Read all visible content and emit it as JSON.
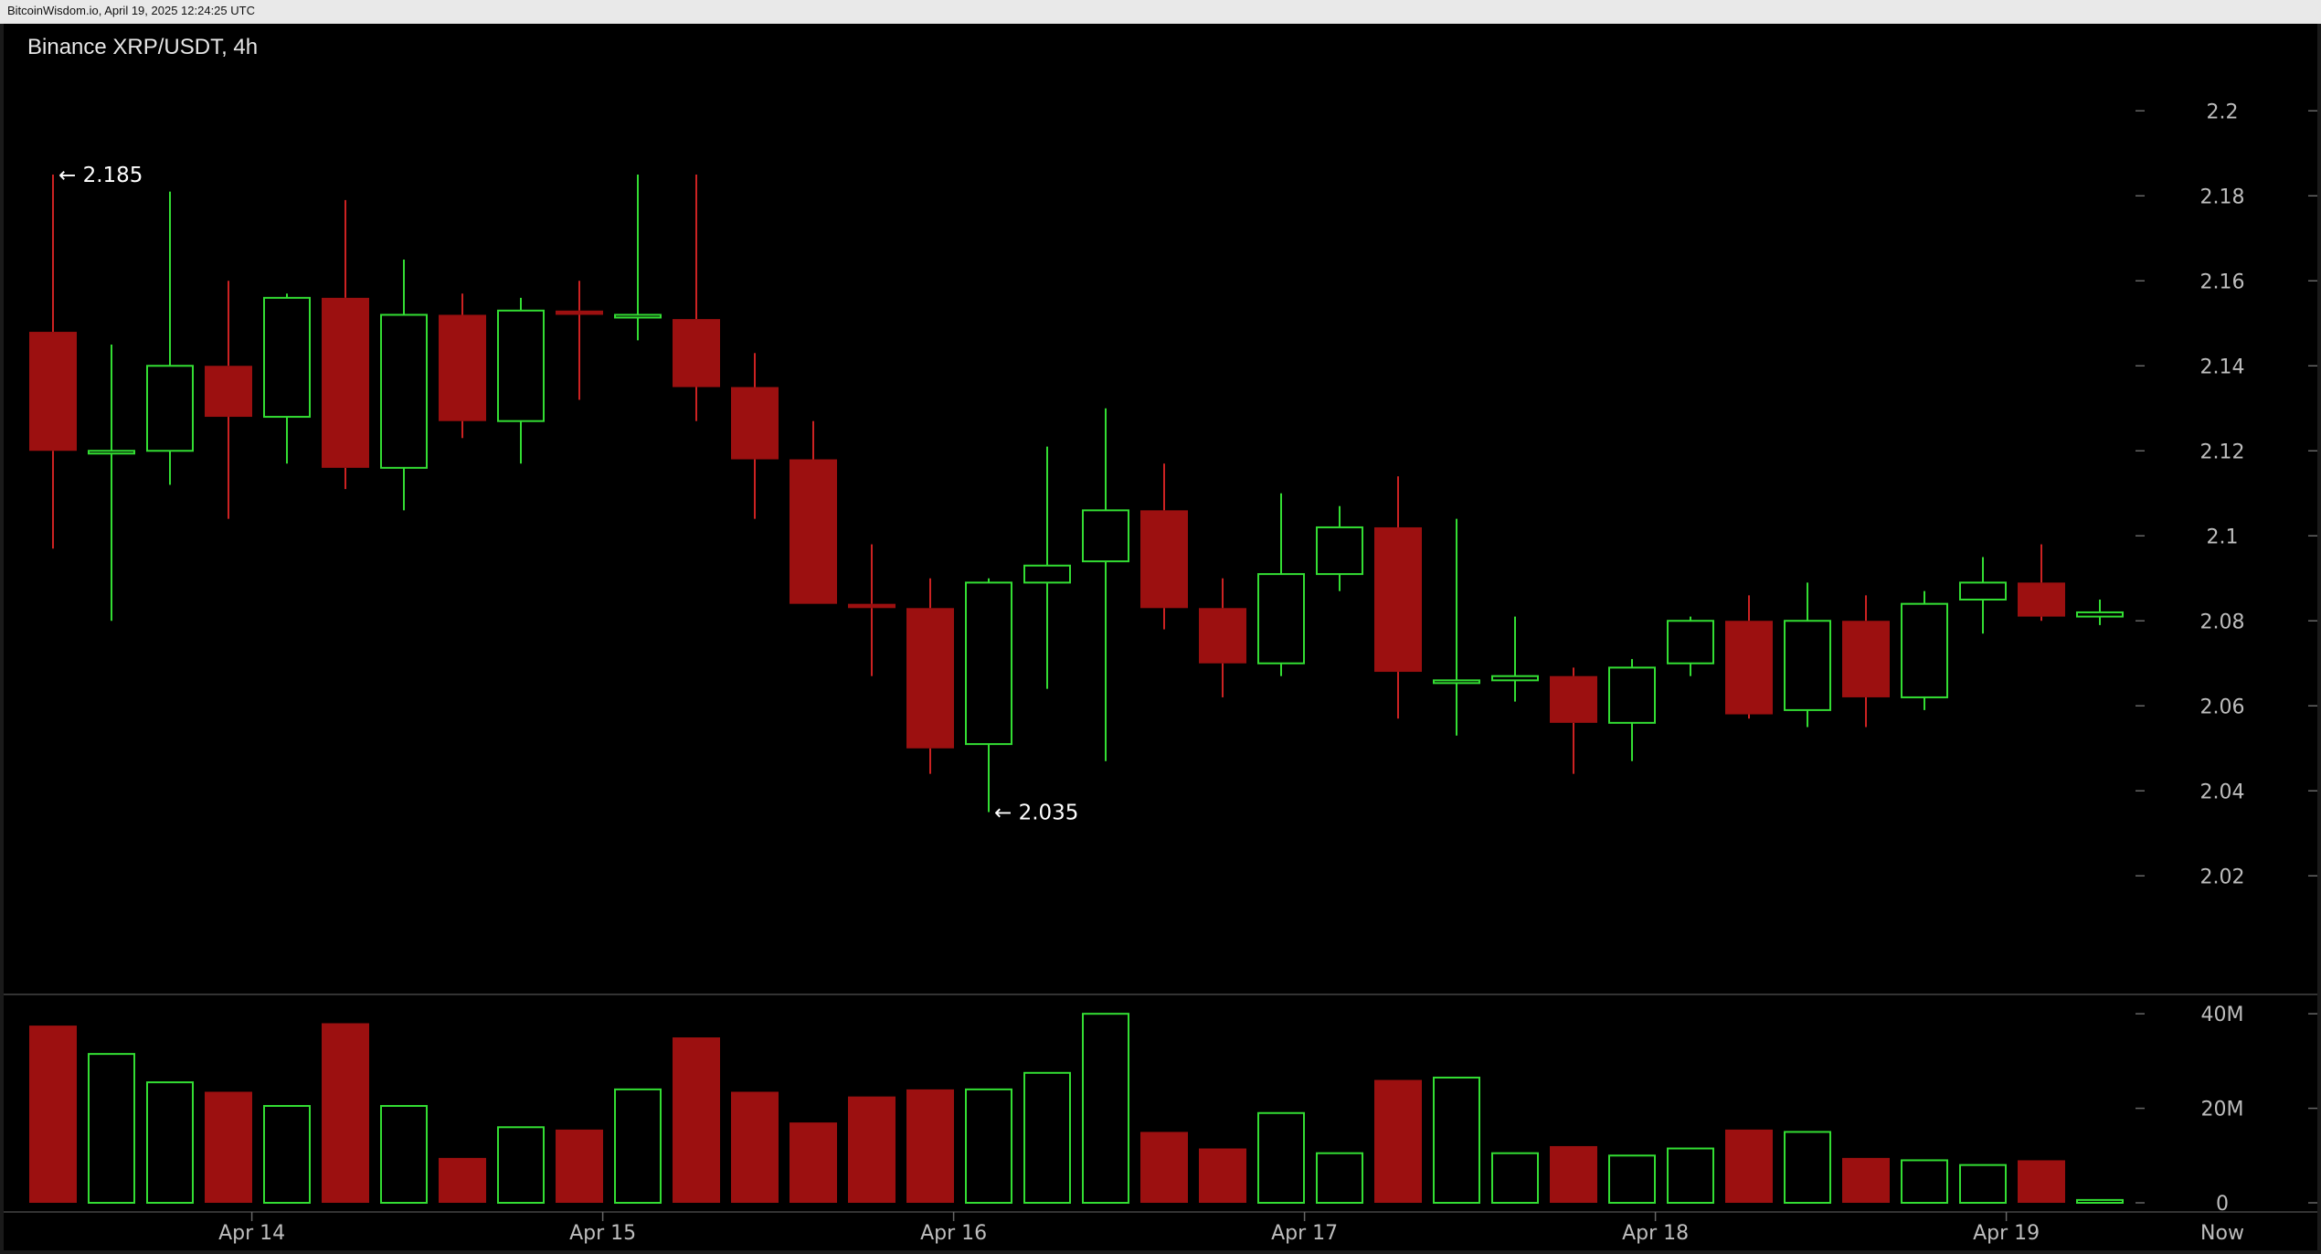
{
  "header": {
    "source_text": "BitcoinWisdom.io, April 19, 2025 12:24:25 UTC"
  },
  "chart_data": {
    "type": "candlestick",
    "title": "Binance XRP/USDT, 4h",
    "colors": {
      "up": "#33dd33",
      "down": "#9c1010",
      "down_wick": "#cc2222",
      "background": "#000000"
    },
    "price_axis": {
      "ylim": [
        2.005,
        2.205
      ],
      "ticks": [
        "2.2",
        "2.18",
        "2.16",
        "2.14",
        "2.12",
        "2.1",
        "2.08",
        "2.06",
        "2.04",
        "2.02"
      ]
    },
    "volume_axis": {
      "ylim": [
        0,
        41
      ],
      "ticks": [
        "40M",
        "20M",
        "0"
      ],
      "tick_values": [
        40,
        20,
        0
      ]
    },
    "x_axis": {
      "labels": [
        "Apr 14",
        "Apr 15",
        "Apr 16",
        "Apr 17",
        "Apr 18",
        "Apr 19",
        "Now"
      ],
      "label_positions": [
        3.4,
        9.4,
        15.4,
        21.4,
        27.4,
        33.4,
        37.6
      ]
    },
    "candles": [
      {
        "o": 2.148,
        "h": 2.185,
        "l": 2.097,
        "c": 2.12,
        "v": 37.5
      },
      {
        "o": 2.12,
        "h": 2.145,
        "l": 2.08,
        "c": 2.12,
        "v": 31.5
      },
      {
        "o": 2.12,
        "h": 2.181,
        "l": 2.112,
        "c": 2.14,
        "v": 25.5
      },
      {
        "o": 2.14,
        "h": 2.16,
        "l": 2.104,
        "c": 2.128,
        "v": 23.5
      },
      {
        "o": 2.128,
        "h": 2.157,
        "l": 2.117,
        "c": 2.156,
        "v": 20.5
      },
      {
        "o": 2.156,
        "h": 2.179,
        "l": 2.111,
        "c": 2.116,
        "v": 38
      },
      {
        "o": 2.116,
        "h": 2.165,
        "l": 2.106,
        "c": 2.152,
        "v": 20.5
      },
      {
        "o": 2.152,
        "h": 2.157,
        "l": 2.123,
        "c": 2.127,
        "v": 9.5
      },
      {
        "o": 2.127,
        "h": 2.156,
        "l": 2.117,
        "c": 2.153,
        "v": 16
      },
      {
        "o": 2.153,
        "h": 2.16,
        "l": 2.132,
        "c": 2.152,
        "v": 15.5
      },
      {
        "o": 2.152,
        "h": 2.185,
        "l": 2.146,
        "c": 2.152,
        "v": 24
      },
      {
        "o": 2.151,
        "h": 2.185,
        "l": 2.127,
        "c": 2.135,
        "v": 35
      },
      {
        "o": 2.135,
        "h": 2.143,
        "l": 2.104,
        "c": 2.118,
        "v": 23.5
      },
      {
        "o": 2.118,
        "h": 2.127,
        "l": 2.084,
        "c": 2.084,
        "v": 17
      },
      {
        "o": 2.084,
        "h": 2.098,
        "l": 2.067,
        "c": 2.083,
        "v": 22.5
      },
      {
        "o": 2.083,
        "h": 2.09,
        "l": 2.044,
        "c": 2.05,
        "v": 24
      },
      {
        "o": 2.051,
        "h": 2.09,
        "l": 2.035,
        "c": 2.089,
        "v": 24
      },
      {
        "o": 2.089,
        "h": 2.121,
        "l": 2.064,
        "c": 2.093,
        "v": 27.5
      },
      {
        "o": 2.094,
        "h": 2.13,
        "l": 2.047,
        "c": 2.106,
        "v": 40
      },
      {
        "o": 2.106,
        "h": 2.117,
        "l": 2.078,
        "c": 2.083,
        "v": 15
      },
      {
        "o": 2.083,
        "h": 2.09,
        "l": 2.062,
        "c": 2.07,
        "v": 11.5
      },
      {
        "o": 2.07,
        "h": 2.11,
        "l": 2.067,
        "c": 2.091,
        "v": 19
      },
      {
        "o": 2.091,
        "h": 2.107,
        "l": 2.087,
        "c": 2.102,
        "v": 10.5
      },
      {
        "o": 2.102,
        "h": 2.114,
        "l": 2.057,
        "c": 2.068,
        "v": 26
      },
      {
        "o": 2.066,
        "h": 2.104,
        "l": 2.053,
        "c": 2.066,
        "v": 26.5
      },
      {
        "o": 2.066,
        "h": 2.081,
        "l": 2.061,
        "c": 2.067,
        "v": 10.5
      },
      {
        "o": 2.067,
        "h": 2.069,
        "l": 2.044,
        "c": 2.056,
        "v": 12
      },
      {
        "o": 2.056,
        "h": 2.071,
        "l": 2.047,
        "c": 2.069,
        "v": 10
      },
      {
        "o": 2.07,
        "h": 2.081,
        "l": 2.067,
        "c": 2.08,
        "v": 11.5
      },
      {
        "o": 2.08,
        "h": 2.086,
        "l": 2.057,
        "c": 2.058,
        "v": 15.5
      },
      {
        "o": 2.059,
        "h": 2.089,
        "l": 2.055,
        "c": 2.08,
        "v": 15
      },
      {
        "o": 2.08,
        "h": 2.086,
        "l": 2.055,
        "c": 2.062,
        "v": 9.5
      },
      {
        "o": 2.062,
        "h": 2.087,
        "l": 2.059,
        "c": 2.084,
        "v": 9
      },
      {
        "o": 2.085,
        "h": 2.095,
        "l": 2.077,
        "c": 2.089,
        "v": 8
      },
      {
        "o": 2.089,
        "h": 2.098,
        "l": 2.08,
        "c": 2.081,
        "v": 9
      },
      {
        "o": 2.081,
        "h": 2.085,
        "l": 2.079,
        "c": 2.082,
        "v": 0.6
      }
    ],
    "annotations": [
      {
        "text": "← 2.185",
        "candle": 0,
        "price": 2.185,
        "anchor": "high"
      },
      {
        "text": "← 2.035",
        "candle": 16,
        "price": 2.035,
        "anchor": "low"
      }
    ]
  }
}
